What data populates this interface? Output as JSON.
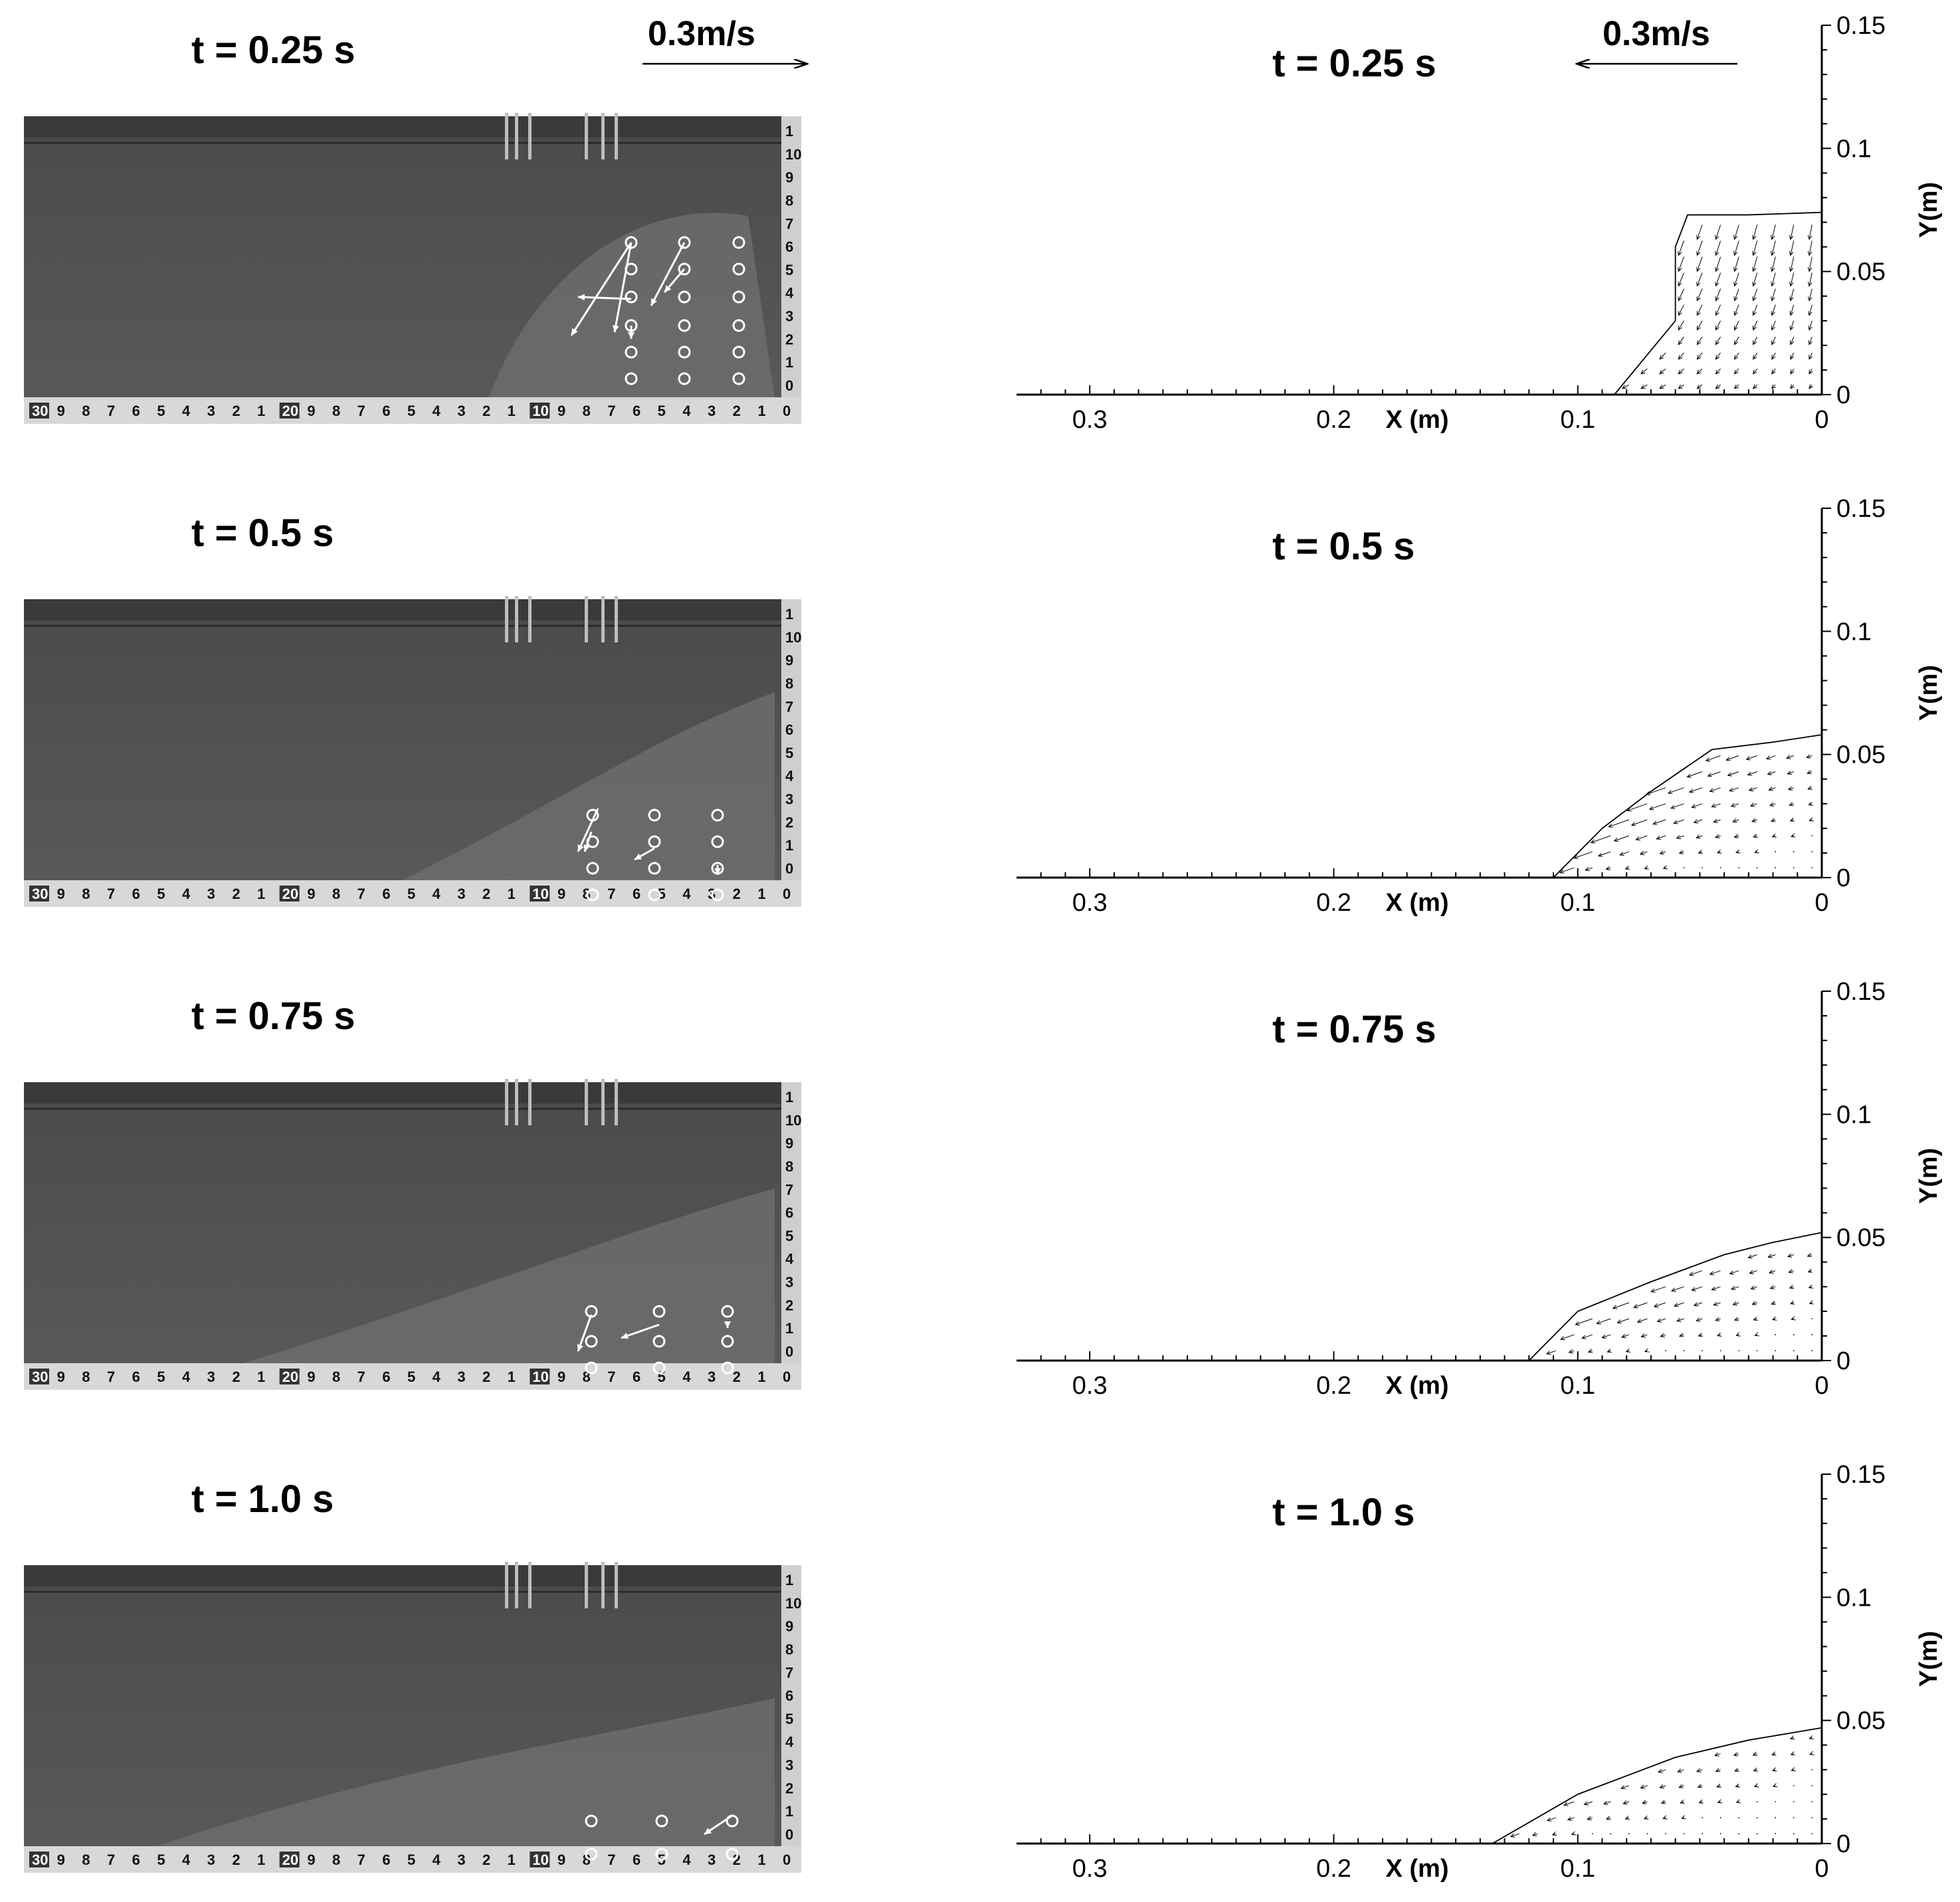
{
  "figure": {
    "scale_label_left": "0.3m/s",
    "scale_label_right": "0.3m/s",
    "bottom_ruler": [
      "30",
      "9",
      "8",
      "7",
      "6",
      "5",
      "4",
      "3",
      "2",
      "1",
      "20",
      "9",
      "8",
      "7",
      "6",
      "5",
      "4",
      "3",
      "2",
      "1",
      "10",
      "9",
      "8",
      "7",
      "6",
      "5",
      "4",
      "3",
      "2",
      "1",
      "0"
    ],
    "side_ruler": [
      "1",
      "10",
      "9",
      "8",
      "7",
      "6",
      "5",
      "4",
      "3",
      "2",
      "1",
      "0"
    ]
  },
  "chart_data": [
    {
      "type": "scatter",
      "title": "t = 0.25 s",
      "xlabel": "X (m)",
      "ylabel": "Y(m)",
      "xlim": [
        0.33,
        0
      ],
      "ylim": [
        0,
        0.15
      ],
      "xticks": [
        "0.3",
        "0.2",
        "0.1",
        "0"
      ],
      "yticks": [
        "0",
        "0.05",
        "0.1",
        "0.15"
      ],
      "free_surface": [
        [
          0.085,
          0
        ],
        [
          0.06,
          0.03
        ],
        [
          0.06,
          0.06
        ],
        [
          0.055,
          0.073
        ],
        [
          0.03,
          0.073
        ],
        [
          0,
          0.074
        ]
      ],
      "vectors": "downward velocity field filling the collapsing column, x 0–0.08 m, y 0–0.07 m"
    },
    {
      "type": "scatter",
      "title": "t = 0.5 s",
      "xlabel": "X (m)",
      "ylabel": "Y(m)",
      "xlim": [
        0.33,
        0
      ],
      "ylim": [
        0,
        0.15
      ],
      "xticks": [
        "0.3",
        "0.2",
        "0.1",
        "0"
      ],
      "yticks": [
        "0",
        "0.05",
        "0.1",
        "0.15"
      ],
      "free_surface": [
        [
          0.11,
          0
        ],
        [
          0.09,
          0.02
        ],
        [
          0.07,
          0.035
        ],
        [
          0.045,
          0.052
        ],
        [
          0.02,
          0.055
        ],
        [
          0,
          0.058
        ]
      ],
      "vectors": "velocity field oriented toward the front, x 0–0.11 m, y 0–0.055 m"
    },
    {
      "type": "scatter",
      "title": "t = 0.75 s",
      "xlabel": "X (m)",
      "ylabel": "Y(m)",
      "xlim": [
        0.33,
        0
      ],
      "ylim": [
        0,
        0.15
      ],
      "xticks": [
        "0.3",
        "0.2",
        "0.1",
        "0"
      ],
      "yticks": [
        "0",
        "0.05",
        "0.1",
        "0.15"
      ],
      "free_surface": [
        [
          0.12,
          0
        ],
        [
          0.1,
          0.02
        ],
        [
          0.07,
          0.032
        ],
        [
          0.04,
          0.043
        ],
        [
          0.02,
          0.048
        ],
        [
          0,
          0.052
        ]
      ],
      "vectors": "velocity field along the sloping pile, x 0–0.125 m, y 0–0.05 m"
    },
    {
      "type": "scatter",
      "title": "t = 1.0 s",
      "xlabel": "X (m)",
      "ylabel": "Y(m)",
      "xlim": [
        0.33,
        0
      ],
      "ylim": [
        0,
        0.15
      ],
      "xticks": [
        "0.3",
        "0.2",
        "0.1",
        "0"
      ],
      "yticks": [
        "0",
        "0.05",
        "0.1",
        "0.15"
      ],
      "free_surface": [
        [
          0.135,
          0
        ],
        [
          0.1,
          0.02
        ],
        [
          0.06,
          0.035
        ],
        [
          0.03,
          0.042
        ],
        [
          0,
          0.047
        ]
      ],
      "vectors": "weak velocity field near the deposit surface, x 0–0.16 m, y 0–0.04 m"
    }
  ]
}
